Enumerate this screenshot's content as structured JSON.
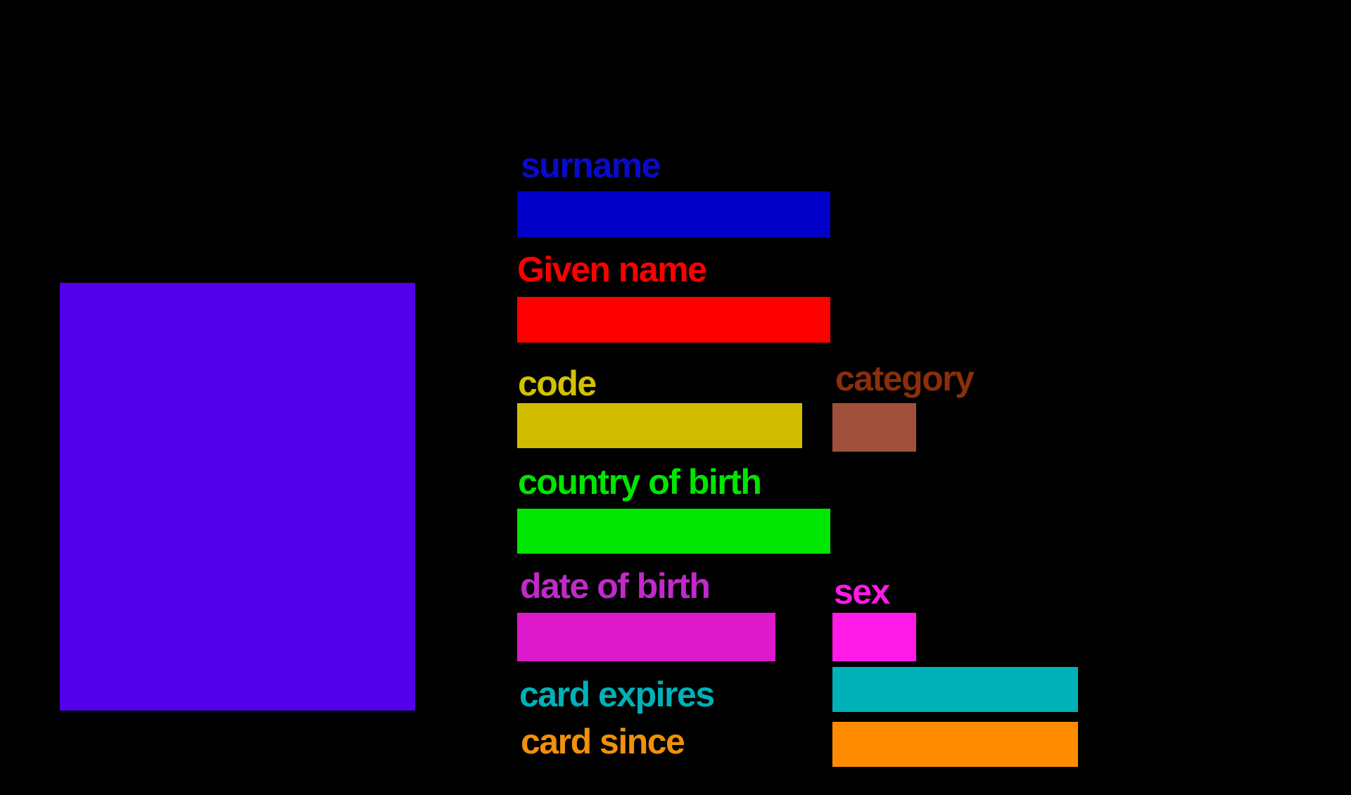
{
  "colors": {
    "background": "#000000",
    "photo": "#5300EA",
    "surname_label": "#0A0ACF",
    "surname_field": "#0000C8",
    "given_name": "#FF0000",
    "code_label": "#D2C200",
    "code_field": "#D1BC00",
    "category_label": "#8B2E0B",
    "category_field": "#A0503A",
    "country_of_birth": "#00E600",
    "date_of_birth_label": "#C02AC8",
    "date_of_birth_field": "#DC1ACB",
    "sex": "#FF1AE6",
    "card_expires": "#00B1B8",
    "card_since_label": "#F0900C",
    "card_since_field": "#FF8C00"
  },
  "fields": {
    "surname": "surname",
    "given_name": "Given name",
    "code": "code",
    "category": "category",
    "country_of_birth": "country of birth",
    "date_of_birth": "date of birth",
    "sex": "sex",
    "card_expires": "card expires",
    "card_since": "card since"
  }
}
